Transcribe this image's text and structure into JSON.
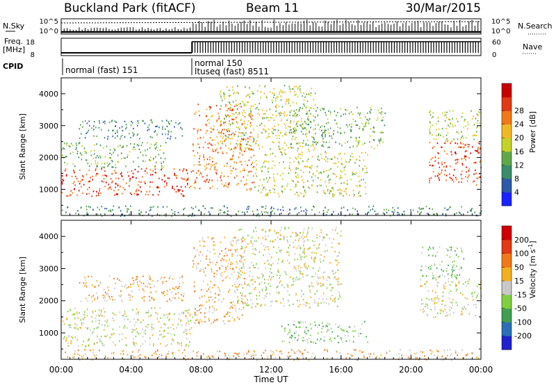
{
  "header": {
    "station": "Buckland Park (fitACF)",
    "beam": "Beam 11",
    "date": "30/Mar/2015"
  },
  "status_panels": {
    "nsky_label": "N.Sky",
    "nsearch_label": "N.Search",
    "noise_ticks": [
      "10^5",
      "10^0"
    ],
    "freq_label_line1": "Freq.",
    "freq_label_line2": "[MHz]",
    "freq_ticks": [
      "18",
      "8"
    ],
    "nave_label": "Nave",
    "nave_ticks": [
      "60",
      "0"
    ],
    "cpid_label": "CPID",
    "cpid_segments": [
      {
        "text": "normal (fast) 151",
        "start_hour": 0
      },
      {
        "text": "normal 150",
        "start_hour": 7.5
      },
      {
        "text": "ltuseq (fast) 8511",
        "start_hour": 7.5
      }
    ]
  },
  "chart_data": [
    {
      "type": "heatmap",
      "title": "",
      "quantity": "Power",
      "xlabel": "Time UT",
      "ylabel": "Slant Range [km]",
      "x_ticks": [
        "00:00",
        "04:00",
        "08:00",
        "12:00",
        "16:00",
        "20:00",
        "00:00"
      ],
      "xlim_hours": [
        0,
        24
      ],
      "y_ticks": [
        1000,
        2000,
        3000,
        4000
      ],
      "ylim": [
        180,
        4500
      ],
      "colorbar": {
        "label": "Power [dB]",
        "ticks": [
          "4",
          "8",
          "12",
          "16",
          "20",
          "24",
          "28"
        ],
        "colors": [
          "#1a22ff",
          "#2c5aa8",
          "#3b8c6a",
          "#5fa84a",
          "#c5d22a",
          "#f2b824",
          "#f07a18",
          "#e23a12",
          "#c80000"
        ]
      },
      "regions": [
        {
          "t0": 0.0,
          "t1": 7.5,
          "r0": 800,
          "r1": 1700,
          "level": 7
        },
        {
          "t0": 0.0,
          "t1": 6.0,
          "r0": 1700,
          "r1": 2500,
          "level": 3
        },
        {
          "t0": 1.0,
          "t1": 7.0,
          "r0": 2600,
          "r1": 3200,
          "level": 2
        },
        {
          "t0": 7.5,
          "t1": 11.0,
          "r0": 1000,
          "r1": 3700,
          "level": 6
        },
        {
          "t0": 9.0,
          "t1": 14.5,
          "r0": 2200,
          "r1": 4300,
          "level": 4
        },
        {
          "t0": 11.0,
          "t1": 17.5,
          "r0": 800,
          "r1": 2200,
          "level": 4
        },
        {
          "t0": 13.0,
          "t1": 18.5,
          "r0": 2300,
          "r1": 3600,
          "level": 3
        },
        {
          "t0": 21.0,
          "t1": 24.0,
          "r0": 1100,
          "r1": 2500,
          "level": 7
        },
        {
          "t0": 21.0,
          "t1": 24.0,
          "r0": 2500,
          "r1": 3500,
          "level": 4
        },
        {
          "t0": 0.0,
          "t1": 24.0,
          "r0": 180,
          "r1": 500,
          "level": 2
        }
      ]
    },
    {
      "type": "heatmap",
      "title": "",
      "quantity": "Velocity",
      "xlabel": "Time UT",
      "ylabel": "Slant Range [km]",
      "x_ticks": [
        "00:00",
        "04:00",
        "08:00",
        "12:00",
        "16:00",
        "20:00",
        "00:00"
      ],
      "xlim_hours": [
        0,
        24
      ],
      "y_ticks": [
        1000,
        2000,
        3000,
        4000
      ],
      "ylim": [
        180,
        4500
      ],
      "colorbar": {
        "label": "Velocity [m s-1]",
        "label_main": "Velocity [m s",
        "label_exp": "-1",
        "label_close": "]",
        "ticks": [
          "200",
          "100",
          "50",
          "15",
          "-15",
          "-50",
          "-100",
          "-200"
        ],
        "colors": [
          "#2020d0",
          "#2a6fb8",
          "#3f9f50",
          "#7fd040",
          "#c8c8c8",
          "#f2b020",
          "#f07818",
          "#e23a12",
          "#d00000"
        ]
      },
      "regions": [
        {
          "t0": 0.0,
          "t1": 7.5,
          "r0": 600,
          "r1": 1800,
          "level": 4
        },
        {
          "t0": 1.0,
          "t1": 7.0,
          "r0": 2000,
          "r1": 2800,
          "level": 5
        },
        {
          "t0": 7.5,
          "t1": 10.5,
          "r0": 1300,
          "r1": 4000,
          "level": 5
        },
        {
          "t0": 10.0,
          "t1": 16.0,
          "r0": 1800,
          "r1": 4300,
          "level": 4
        },
        {
          "t0": 12.5,
          "t1": 17.5,
          "r0": 700,
          "r1": 1400,
          "level": 3
        },
        {
          "t0": 20.5,
          "t1": 24.0,
          "r0": 1500,
          "r1": 2700,
          "level": 4
        },
        {
          "t0": 20.5,
          "t1": 23.0,
          "r0": 2700,
          "r1": 3700,
          "level": 3
        },
        {
          "t0": 0.0,
          "t1": 24.0,
          "r0": 180,
          "r1": 500,
          "level": 5
        }
      ]
    }
  ]
}
